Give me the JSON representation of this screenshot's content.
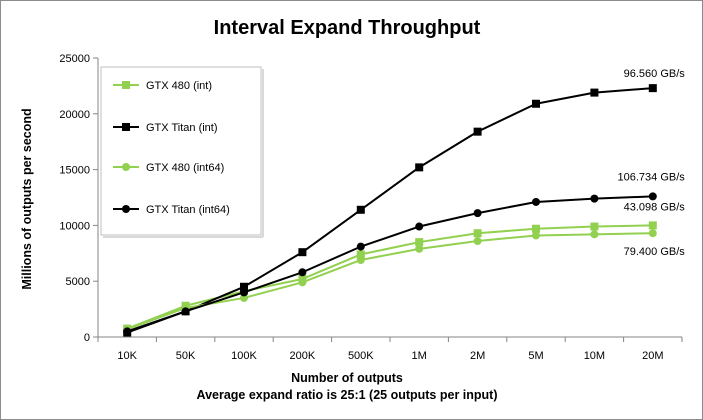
{
  "chart_data": {
    "type": "line",
    "title": "Interval Expand Throughput",
    "xlabel": "Number of outputs",
    "xlabel2": "Average expand ratio is 25:1 (25 outputs per input)",
    "ylabel": "Millions of outputs per second",
    "categories": [
      "10K",
      "50K",
      "100K",
      "200K",
      "500K",
      "1M",
      "2M",
      "5M",
      "10M",
      "20M"
    ],
    "ylim": [
      0,
      25000
    ],
    "yticks": [
      0,
      5000,
      10000,
      15000,
      20000,
      25000
    ],
    "grid": false,
    "legend_position": "top-left",
    "series": [
      {
        "name": "GTX 480 (int)",
        "color": "#92d050",
        "marker": "square",
        "values": [
          750,
          2800,
          4100,
          5200,
          7400,
          8500,
          9300,
          9700,
          9900,
          10000
        ]
      },
      {
        "name": "GTX Titan (int)",
        "color": "#000000",
        "marker": "square",
        "values": [
          400,
          2300,
          4500,
          7600,
          11400,
          15200,
          18400,
          20900,
          21900,
          22300
        ]
      },
      {
        "name": "GTX 480 (int64)",
        "color": "#92d050",
        "marker": "circle",
        "values": [
          700,
          2600,
          3500,
          4900,
          6900,
          7900,
          8600,
          9100,
          9200,
          9300
        ]
      },
      {
        "name": "GTX Titan (int64)",
        "color": "#000000",
        "marker": "circle",
        "values": [
          500,
          2300,
          4000,
          5800,
          8100,
          9900,
          11100,
          12100,
          12400,
          12600
        ]
      }
    ],
    "annotations": [
      {
        "text": "96.560 GB/s",
        "series": 1
      },
      {
        "text": "106.734 GB/s",
        "series": 3
      },
      {
        "text": "43.098 GB/s",
        "series": 0
      },
      {
        "text": "79.400 GB/s",
        "series": 2
      }
    ]
  }
}
